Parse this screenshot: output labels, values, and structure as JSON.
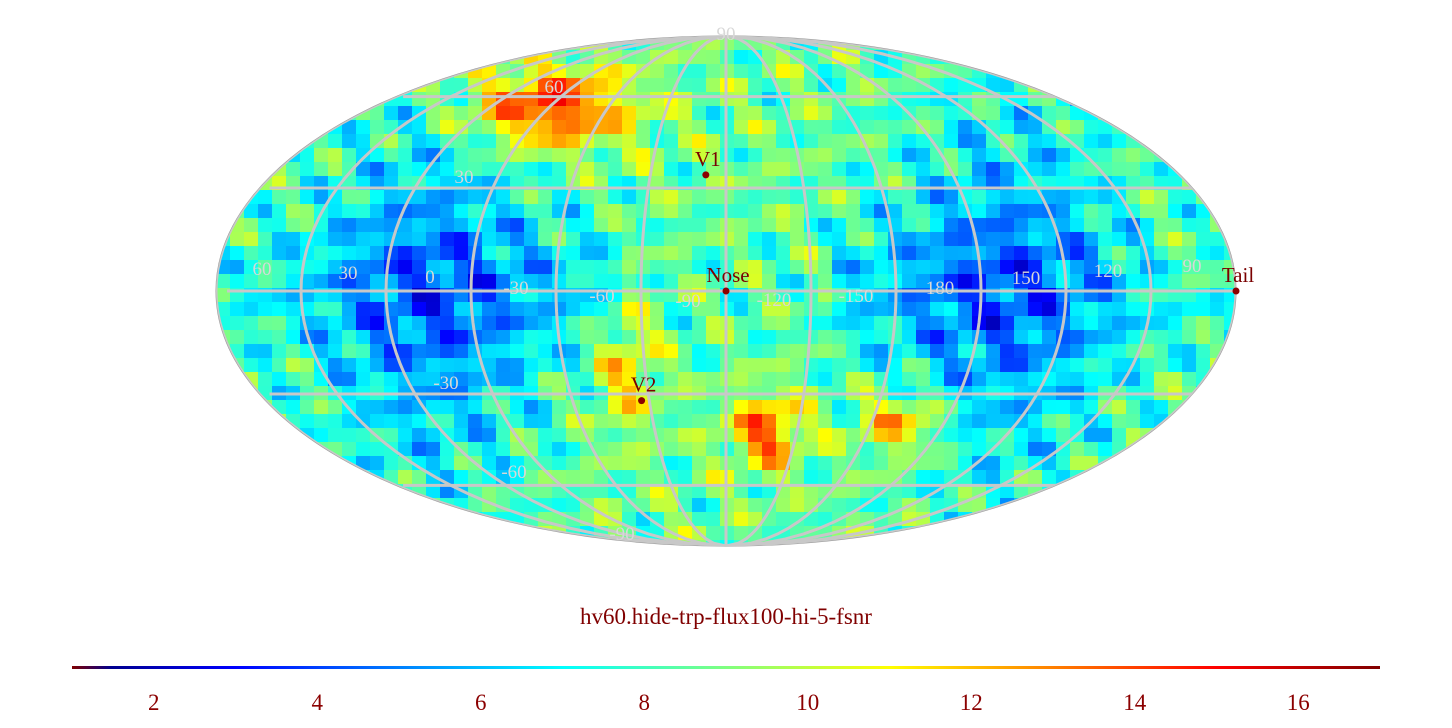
{
  "caption": "hv60.hide-trp-flux100-hi-5-fsnr",
  "colormap": "jet",
  "colorbar": {
    "min": 1,
    "max": 17,
    "ticks": [
      "2",
      "4",
      "6",
      "8",
      "10",
      "12",
      "14",
      "16"
    ]
  },
  "graticule": {
    "color": "#c8c8c8",
    "longitude_labels": [
      "60",
      "30",
      "0",
      "-30",
      "-60",
      "-90",
      "-120",
      "-150",
      "180",
      "150",
      "120",
      "90"
    ],
    "latitude_labels": [
      "90",
      "60",
      "30",
      "-30",
      "-60",
      "-90"
    ]
  },
  "markers": [
    {
      "label": "V1",
      "lon": -97,
      "lat": 34
    },
    {
      "label": "Nose",
      "lon": -105,
      "lat": 0
    },
    {
      "label": "Tail",
      "lon": 75,
      "lat": 0
    },
    {
      "label": "V2",
      "lon": -72,
      "lat": -32
    }
  ]
}
